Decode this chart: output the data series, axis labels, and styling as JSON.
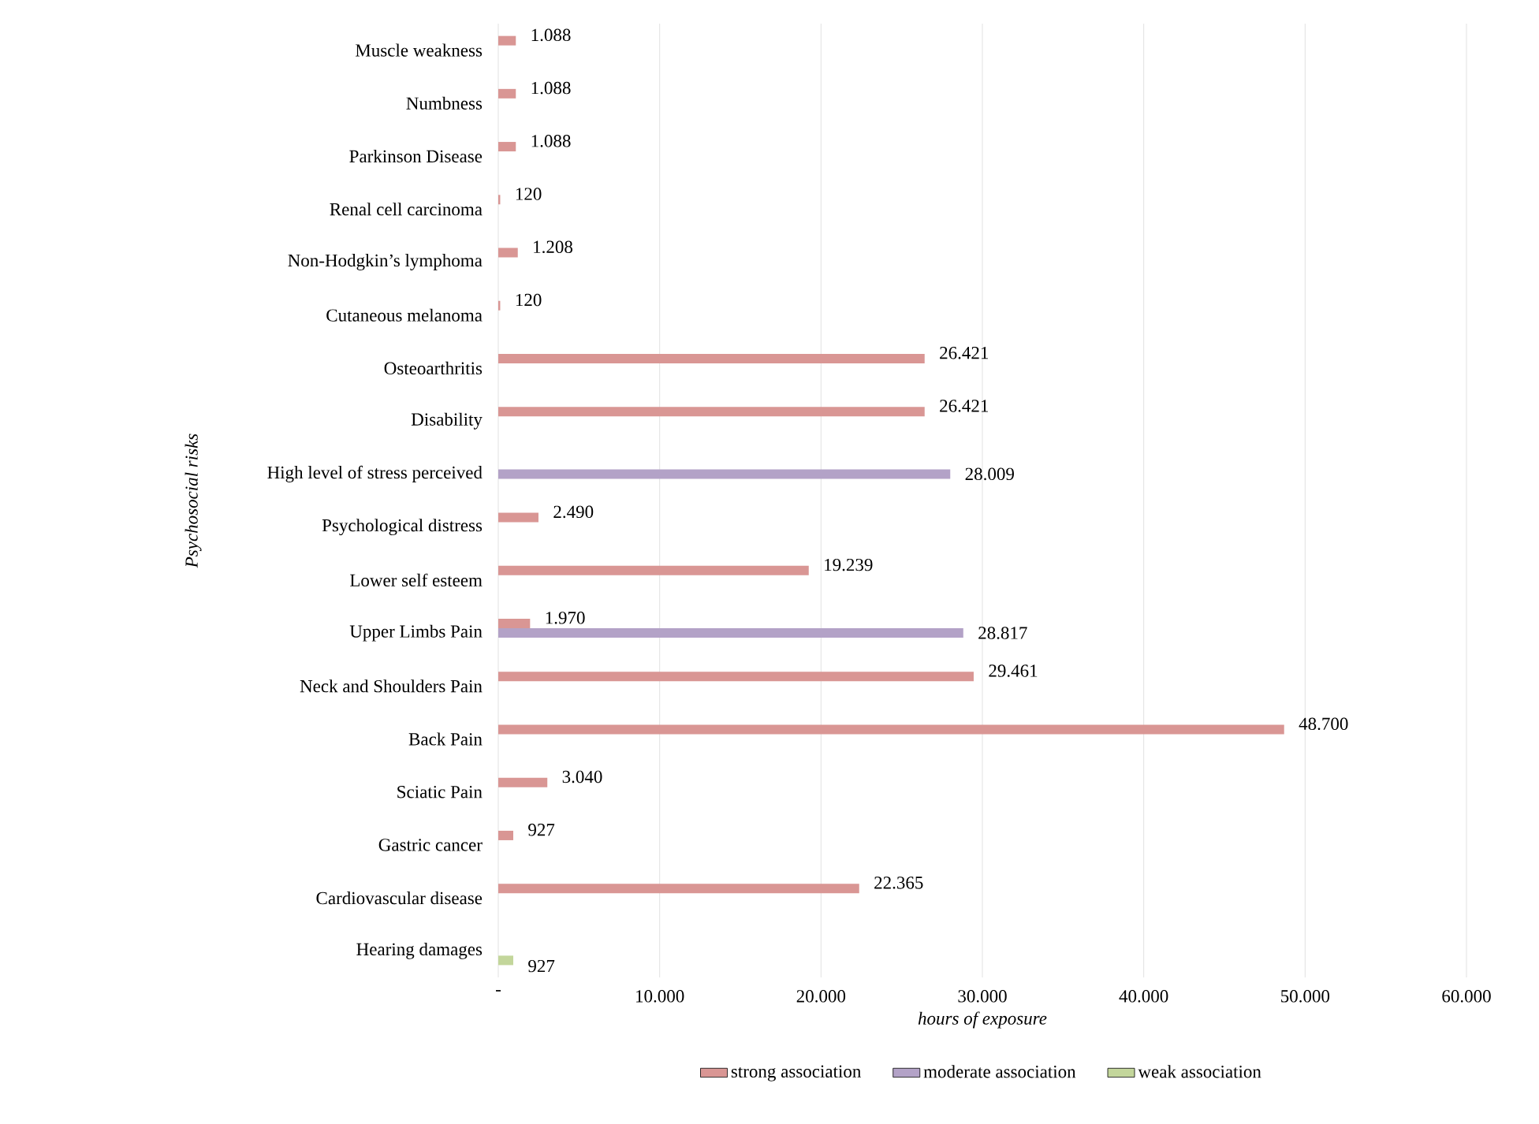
{
  "chart_data": {
    "type": "bar",
    "orientation": "horizontal",
    "xlabel": "hours of exposure",
    "ylabel": "Psychosocial risks",
    "categories": [
      "Muscle weakness",
      "Numbness",
      "Parkinson Disease",
      "Renal cell carcinoma",
      "Non-Hodgkin’s lymphoma",
      "Cutaneous melanoma",
      "Osteoarthritis",
      "Disability",
      "High level of stress perceived",
      "Psychological distress",
      "Lower self esteem",
      "Upper Limbs Pain",
      "Neck and Shoulders Pain",
      "Back Pain",
      "Sciatic Pain",
      "Gastric cancer",
      "Cardiovascular disease",
      "Hearing damages"
    ],
    "series": [
      {
        "name": "strong association",
        "color": "#d99694",
        "values": [
          1088,
          1088,
          1088,
          120,
          1208,
          120,
          26421,
          26421,
          null,
          2490,
          19239,
          1970,
          29461,
          48700,
          3040,
          927,
          22365,
          null
        ],
        "value_labels": [
          "1.088",
          "1.088",
          "1.088",
          "120",
          "1.208",
          "120",
          "26.421",
          "26.421",
          null,
          "2.490",
          "19.239",
          "1.970",
          "29.461",
          "48.700",
          "3.040",
          "927",
          "22.365",
          null
        ]
      },
      {
        "name": "moderate association",
        "color": "#b3a2c7",
        "values": [
          null,
          null,
          null,
          null,
          null,
          null,
          null,
          null,
          28009,
          null,
          null,
          28817,
          null,
          null,
          null,
          null,
          null,
          null
        ],
        "value_labels": [
          null,
          null,
          null,
          null,
          null,
          null,
          null,
          null,
          "28.009",
          null,
          null,
          "28.817",
          null,
          null,
          null,
          null,
          null,
          null
        ]
      },
      {
        "name": "weak association",
        "color": "#c3d69b",
        "values": [
          null,
          null,
          null,
          null,
          null,
          null,
          null,
          null,
          null,
          null,
          null,
          null,
          null,
          null,
          null,
          null,
          null,
          927
        ],
        "value_labels": [
          null,
          null,
          null,
          null,
          null,
          null,
          null,
          null,
          null,
          null,
          null,
          null,
          null,
          null,
          null,
          null,
          null,
          "927"
        ]
      }
    ],
    "xlim": [
      0,
      60000
    ],
    "xticks": [
      {
        "value": 0,
        "label": "-"
      },
      {
        "value": 10000,
        "label": "10.000"
      },
      {
        "value": 20000,
        "label": "20.000"
      },
      {
        "value": 30000,
        "label": "30.000"
      },
      {
        "value": 40000,
        "label": "40.000"
      },
      {
        "value": 50000,
        "label": "50.000"
      },
      {
        "value": 60000,
        "label": "60.000"
      }
    ],
    "grid": "x",
    "legend": "bottom"
  }
}
